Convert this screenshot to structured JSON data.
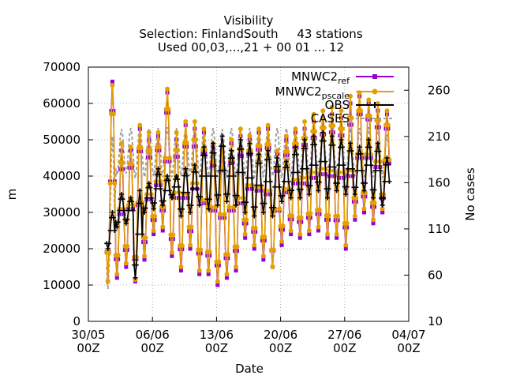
{
  "chart_data": {
    "type": "line",
    "title": [
      "Visibility",
      "Selection: FinlandSouth     43 stations",
      "Used 00,03,...,21 + 00 01 ... 12"
    ],
    "xlabel": "Date",
    "ylabel": "m",
    "y2label": "No cases",
    "ylim": [
      0,
      70000
    ],
    "y2lim": [
      10,
      285
    ],
    "xlim": [
      "2012-05-30 00Z",
      "2012-07-04 00Z"
    ],
    "yticks": [
      "0",
      "10000",
      "20000",
      "30000",
      "40000",
      "50000",
      "60000",
      "70000"
    ],
    "y2ticks": [
      "10",
      "60",
      "110",
      "160",
      "210",
      "260"
    ],
    "xticks": [
      {
        "day": "30/05",
        "hour": "00Z"
      },
      {
        "day": "06/06",
        "hour": "00Z"
      },
      {
        "day": "13/06",
        "hour": "00Z"
      },
      {
        "day": "20/06",
        "hour": "00Z"
      },
      {
        "day": "27/06",
        "hour": "00Z"
      },
      {
        "day": "04/07",
        "hour": "00Z"
      }
    ],
    "grid": true,
    "legend_position": "top-right",
    "series": [
      {
        "name": "MNWC2_ref",
        "label_main": "MNWC2",
        "label_sub": "ref",
        "color": "#9400d3",
        "marker": "square",
        "daily_high": [
          66000,
          47000,
          47000,
          53000,
          50000,
          51000,
          63000,
          50000,
          54000,
          53000,
          52000,
          48000,
          47000,
          49000,
          51000,
          50000,
          52000,
          53000,
          46000,
          50000,
          52000,
          53000,
          55000,
          56000,
          57000,
          56000,
          60000,
          62000,
          60000,
          58000,
          57000
        ],
        "daily_low": [
          11000,
          12000,
          15000,
          11000,
          17000,
          24000,
          25000,
          18000,
          14000,
          20000,
          13000,
          13000,
          10000,
          12000,
          14000,
          23000,
          20000,
          17000,
          15000,
          21000,
          24000,
          23000,
          24000,
          25000,
          23000,
          23000,
          20000,
          28000,
          30000,
          27000,
          30000
        ]
      },
      {
        "name": "MNWC2_pscale",
        "label_main": "MNWC2",
        "label_sub": "pscale",
        "color": "#e69f00",
        "marker": "circle",
        "daily_high": [
          65000,
          49000,
          48000,
          54000,
          52000,
          52000,
          64000,
          52000,
          55000,
          55000,
          53000,
          49000,
          48000,
          50000,
          53000,
          51000,
          53000,
          54000,
          47000,
          51000,
          53000,
          55000,
          57000,
          58000,
          59000,
          58000,
          62000,
          63000,
          61000,
          60000,
          58000
        ],
        "daily_low": [
          11000,
          13000,
          16000,
          11500,
          18000,
          25000,
          26000,
          19000,
          15000,
          21000,
          14000,
          14000,
          11000,
          13000,
          15000,
          24000,
          21000,
          18000,
          15000,
          22000,
          25000,
          24000,
          25000,
          26000,
          24000,
          24000,
          21000,
          29000,
          31000,
          28000,
          31000
        ]
      },
      {
        "name": "OBS",
        "label_main": "OBS",
        "label_sub": "",
        "color": "#000000",
        "marker": "plus",
        "daily_high": [
          30000,
          35000,
          34000,
          36000,
          38000,
          42000,
          40000,
          40000,
          42000,
          43000,
          48000,
          49000,
          51000,
          47000,
          50000,
          49000,
          46000,
          47000,
          45000,
          44000,
          48000,
          50000,
          51000,
          52000,
          51000,
          50000,
          49000,
          48000,
          50000,
          49000,
          45000
        ],
        "daily_low": [
          20000,
          26000,
          27000,
          12000,
          30000,
          31000,
          32000,
          34000,
          29000,
          30000,
          32000,
          31000,
          32000,
          33000,
          32000,
          30000,
          29000,
          30000,
          29000,
          33000,
          34000,
          34000,
          35000,
          36000,
          34000,
          36000,
          35000,
          35000,
          36000,
          34000,
          32000
        ]
      },
      {
        "name": "CASES",
        "label_main": "CASES",
        "label_sub": "",
        "color": "#a0a0a0",
        "marker": "none",
        "axis": "y2",
        "daily_high": [
          210,
          218,
          219,
          220,
          219,
          219,
          220,
          219,
          219,
          220,
          219,
          219,
          218,
          219,
          219,
          219,
          219,
          219,
          219,
          219,
          219,
          219,
          220,
          219,
          219,
          219,
          219,
          219,
          220,
          219,
          212
        ],
        "daily_low": [
          45,
          168,
          170,
          165,
          166,
          167,
          166,
          166,
          167,
          168,
          166,
          167,
          166,
          165,
          166,
          167,
          166,
          166,
          167,
          165,
          166,
          166,
          167,
          166,
          165,
          166,
          166,
          167,
          166,
          166,
          165
        ]
      }
    ]
  }
}
